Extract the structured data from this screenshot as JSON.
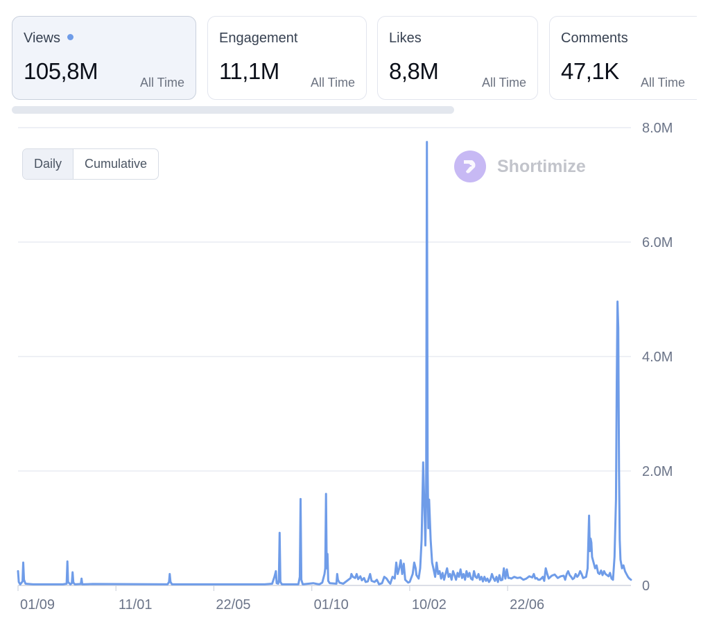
{
  "metrics": [
    {
      "label": "Views",
      "value": "105,8M",
      "period": "All Time",
      "selected": true
    },
    {
      "label": "Engagement",
      "value": "11,1M",
      "period": "All Time",
      "selected": false
    },
    {
      "label": "Likes",
      "value": "8,8M",
      "period": "All Time",
      "selected": false
    },
    {
      "label": "Comments",
      "value": "47,1K",
      "period": "All Time",
      "selected": false
    }
  ],
  "toggle": {
    "daily": "Daily",
    "cumulative": "Cumulative",
    "active": "Daily"
  },
  "watermark": {
    "text": "Shortimize"
  },
  "colors": {
    "line": "#6f9ce8",
    "grid": "#e4e7ef",
    "axis_text": "#6b7488",
    "dot": "#6f9ce8"
  },
  "chart_data": {
    "type": "line",
    "title": "",
    "xlabel": "",
    "ylabel": "",
    "ylim": [
      0,
      8000000
    ],
    "y_ticks": [
      {
        "value": 8000000,
        "label": "8.0M"
      },
      {
        "value": 6000000,
        "label": "6.0M"
      },
      {
        "value": 4000000,
        "label": "4.0M"
      },
      {
        "value": 2000000,
        "label": "2.0M"
      },
      {
        "value": 0,
        "label": "0"
      }
    ],
    "x_ticks": [
      {
        "index": 0,
        "label": "01/09"
      },
      {
        "index": 131,
        "label": "11/01"
      },
      {
        "index": 262,
        "label": "22/05"
      },
      {
        "index": 393,
        "label": "01/10"
      },
      {
        "index": 524,
        "label": "10/02"
      },
      {
        "index": 655,
        "label": "22/06"
      }
    ],
    "grid": true,
    "legend": "none",
    "series": [
      {
        "points": [
          [
            0,
            250000
          ],
          [
            1,
            60000
          ],
          [
            3,
            20000
          ],
          [
            6,
            70000
          ],
          [
            7,
            400000
          ],
          [
            8,
            100000
          ],
          [
            10,
            30000
          ],
          [
            20,
            20000
          ],
          [
            60,
            20000
          ],
          [
            65,
            30000
          ],
          [
            66,
            420000
          ],
          [
            67,
            60000
          ],
          [
            70,
            20000
          ],
          [
            72,
            40000
          ],
          [
            73,
            230000
          ],
          [
            74,
            50000
          ],
          [
            76,
            20000
          ],
          [
            84,
            25000
          ],
          [
            85,
            120000
          ],
          [
            86,
            20000
          ],
          [
            100,
            25000
          ],
          [
            200,
            20000
          ],
          [
            202,
            60000
          ],
          [
            203,
            200000
          ],
          [
            204,
            60000
          ],
          [
            206,
            20000
          ],
          [
            280,
            20000
          ],
          [
            330,
            20000
          ],
          [
            340,
            30000
          ],
          [
            343,
            150000
          ],
          [
            345,
            250000
          ],
          [
            346,
            40000
          ],
          [
            348,
            30000
          ],
          [
            349,
            100000
          ],
          [
            350,
            920000
          ],
          [
            351,
            60000
          ],
          [
            353,
            20000
          ],
          [
            375,
            20000
          ],
          [
            377,
            150000
          ],
          [
            378,
            1510000
          ],
          [
            379,
            100000
          ],
          [
            381,
            20000
          ],
          [
            395,
            40000
          ],
          [
            400,
            25000
          ],
          [
            403,
            20000
          ],
          [
            407,
            50000
          ],
          [
            410,
            200000
          ],
          [
            411,
            300000
          ],
          [
            412,
            1600000
          ],
          [
            413,
            300000
          ],
          [
            414,
            550000
          ],
          [
            415,
            80000
          ],
          [
            417,
            40000
          ],
          [
            426,
            30000
          ],
          [
            427,
            200000
          ],
          [
            428,
            100000
          ],
          [
            430,
            50000
          ],
          [
            435,
            30000
          ],
          [
            445,
            130000
          ],
          [
            446,
            200000
          ],
          [
            448,
            150000
          ],
          [
            451,
            130000
          ],
          [
            453,
            200000
          ],
          [
            455,
            110000
          ],
          [
            458,
            160000
          ],
          [
            460,
            90000
          ],
          [
            463,
            130000
          ],
          [
            465,
            60000
          ],
          [
            468,
            70000
          ],
          [
            471,
            200000
          ],
          [
            473,
            80000
          ],
          [
            477,
            60000
          ],
          [
            480,
            100000
          ],
          [
            483,
            20000
          ],
          [
            487,
            40000
          ],
          [
            490,
            150000
          ],
          [
            493,
            120000
          ],
          [
            496,
            60000
          ],
          [
            498,
            30000
          ],
          [
            501,
            150000
          ],
          [
            504,
            120000
          ],
          [
            506,
            400000
          ],
          [
            508,
            200000
          ],
          [
            510,
            300000
          ],
          [
            512,
            440000
          ],
          [
            514,
            200000
          ],
          [
            516,
            380000
          ],
          [
            518,
            100000
          ],
          [
            522,
            50000
          ],
          [
            524,
            60000
          ],
          [
            528,
            200000
          ],
          [
            530,
            400000
          ],
          [
            532,
            300000
          ],
          [
            533,
            180000
          ],
          [
            536,
            120000
          ],
          [
            538,
            300000
          ],
          [
            540,
            800000
          ],
          [
            542,
            2150000
          ],
          [
            544,
            1200000
          ],
          [
            545,
            700000
          ],
          [
            546,
            1500000
          ],
          [
            547,
            7750000
          ],
          [
            548,
            2000000
          ],
          [
            549,
            1000000
          ],
          [
            550,
            1500000
          ],
          [
            552,
            800000
          ],
          [
            554,
            400000
          ],
          [
            556,
            280000
          ],
          [
            558,
            150000
          ],
          [
            560,
            400000
          ],
          [
            562,
            200000
          ],
          [
            564,
            250000
          ],
          [
            566,
            120000
          ],
          [
            568,
            220000
          ],
          [
            570,
            100000
          ],
          [
            572,
            200000
          ],
          [
            574,
            300000
          ],
          [
            576,
            150000
          ],
          [
            578,
            200000
          ],
          [
            580,
            100000
          ],
          [
            582,
            250000
          ],
          [
            584,
            180000
          ],
          [
            586,
            100000
          ],
          [
            588,
            220000
          ],
          [
            590,
            150000
          ],
          [
            592,
            280000
          ],
          [
            594,
            130000
          ],
          [
            596,
            200000
          ],
          [
            598,
            100000
          ],
          [
            600,
            250000
          ],
          [
            602,
            150000
          ],
          [
            604,
            220000
          ],
          [
            606,
            120000
          ],
          [
            608,
            100000
          ],
          [
            610,
            250000
          ],
          [
            612,
            150000
          ],
          [
            614,
            130000
          ],
          [
            616,
            200000
          ],
          [
            618,
            100000
          ],
          [
            620,
            150000
          ],
          [
            622,
            70000
          ],
          [
            624,
            150000
          ],
          [
            626,
            80000
          ],
          [
            628,
            120000
          ],
          [
            630,
            60000
          ],
          [
            632,
            100000
          ],
          [
            634,
            200000
          ],
          [
            636,
            130000
          ],
          [
            638,
            80000
          ],
          [
            640,
            150000
          ],
          [
            642,
            60000
          ],
          [
            644,
            180000
          ],
          [
            646,
            90000
          ],
          [
            648,
            100000
          ],
          [
            650,
            300000
          ],
          [
            652,
            120000
          ],
          [
            654,
            280000
          ],
          [
            656,
            130000
          ],
          [
            658,
            130000
          ],
          [
            660,
            120000
          ],
          [
            664,
            150000
          ],
          [
            668,
            130000
          ],
          [
            672,
            140000
          ],
          [
            676,
            100000
          ],
          [
            680,
            120000
          ],
          [
            684,
            160000
          ],
          [
            686,
            150000
          ],
          [
            688,
            140000
          ],
          [
            690,
            200000
          ],
          [
            692,
            120000
          ],
          [
            694,
            130000
          ],
          [
            696,
            100000
          ],
          [
            698,
            100000
          ],
          [
            700,
            120000
          ],
          [
            702,
            150000
          ],
          [
            704,
            80000
          ],
          [
            706,
            300000
          ],
          [
            708,
            200000
          ],
          [
            710,
            120000
          ],
          [
            714,
            170000
          ],
          [
            718,
            190000
          ],
          [
            722,
            130000
          ],
          [
            726,
            160000
          ],
          [
            730,
            170000
          ],
          [
            732,
            100000
          ],
          [
            734,
            200000
          ],
          [
            736,
            250000
          ],
          [
            738,
            180000
          ],
          [
            740,
            150000
          ],
          [
            742,
            110000
          ],
          [
            744,
            130000
          ],
          [
            746,
            200000
          ],
          [
            748,
            150000
          ],
          [
            750,
            180000
          ],
          [
            752,
            250000
          ],
          [
            754,
            200000
          ],
          [
            756,
            130000
          ],
          [
            758,
            140000
          ],
          [
            760,
            150000
          ],
          [
            762,
            300000
          ],
          [
            764,
            1220000
          ],
          [
            765,
            600000
          ],
          [
            766,
            820000
          ],
          [
            767,
            750000
          ],
          [
            768,
            500000
          ],
          [
            770,
            400000
          ],
          [
            772,
            300000
          ],
          [
            774,
            350000
          ],
          [
            776,
            220000
          ],
          [
            778,
            200000
          ],
          [
            780,
            260000
          ],
          [
            782,
            180000
          ],
          [
            784,
            250000
          ],
          [
            786,
            200000
          ],
          [
            788,
            180000
          ],
          [
            790,
            160000
          ],
          [
            792,
            220000
          ],
          [
            794,
            120000
          ],
          [
            796,
            100000
          ],
          [
            798,
            500000
          ],
          [
            800,
            1500000
          ],
          [
            801,
            3500000
          ],
          [
            802,
            4960000
          ],
          [
            803,
            4500000
          ],
          [
            804,
            2000000
          ],
          [
            805,
            800000
          ],
          [
            806,
            450000
          ],
          [
            808,
            300000
          ],
          [
            810,
            350000
          ],
          [
            812,
            250000
          ],
          [
            814,
            200000
          ],
          [
            816,
            150000
          ],
          [
            818,
            120000
          ],
          [
            820,
            100000
          ]
        ]
      }
    ]
  }
}
